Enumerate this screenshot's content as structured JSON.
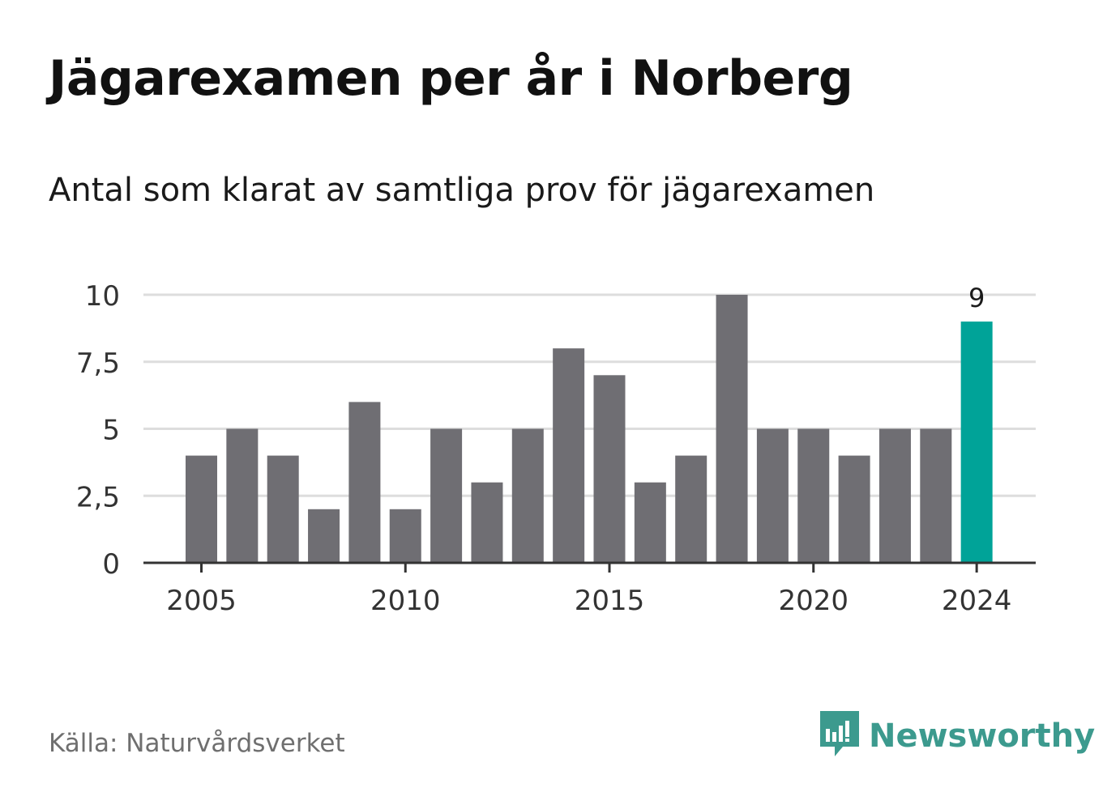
{
  "header": {
    "title": "Jägarexamen per år i Norberg",
    "subtitle": "Antal som klarat av samtliga prov för jägarexamen"
  },
  "footer": {
    "source": "Källa: Naturvårdsverket",
    "brand": "Newsworthy",
    "brand_icon": "bar-chart-speech-bubble-icon"
  },
  "colors": {
    "bar": "#6f6e73",
    "highlight": "#00a398",
    "grid": "#dddddd",
    "axis": "#333333",
    "brand": "#3c9a8e"
  },
  "chart_data": {
    "type": "bar",
    "x": [
      2005,
      2006,
      2007,
      2008,
      2009,
      2010,
      2011,
      2012,
      2013,
      2014,
      2015,
      2016,
      2017,
      2018,
      2019,
      2020,
      2021,
      2022,
      2023,
      2024
    ],
    "values": [
      4,
      5,
      4,
      2,
      6,
      2,
      5,
      3,
      5,
      8,
      7,
      3,
      4,
      10,
      5,
      5,
      4,
      5,
      5,
      9
    ],
    "highlight_x": 2024,
    "highlight_label": "9",
    "ylim": [
      0,
      10
    ],
    "yticks": [
      0,
      2.5,
      5,
      7.5,
      10
    ],
    "ytick_labels": [
      "0",
      "2,5",
      "5",
      "7,5",
      "10"
    ],
    "xticks": [
      2005,
      2010,
      2015,
      2020,
      2024
    ],
    "xtick_labels": [
      "2005",
      "2010",
      "2015",
      "2020",
      "2024"
    ],
    "grid": true
  }
}
